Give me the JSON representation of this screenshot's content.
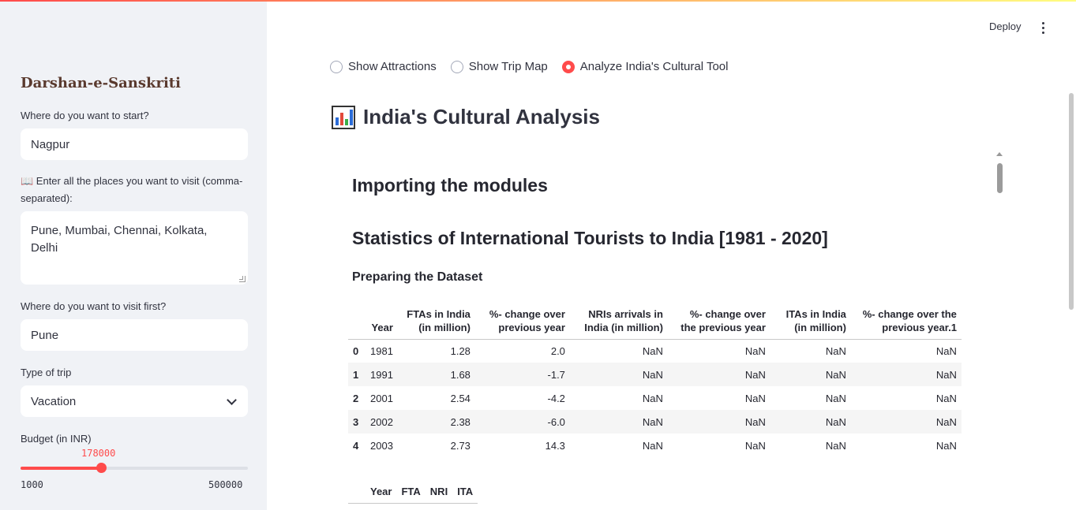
{
  "sidebar": {
    "title": "Darshan-e-Sanskriti",
    "start_label": "Where do you want to start?",
    "start_value": "Nagpur",
    "places_label": "📖 Enter all the places you want to visit (comma-separated):",
    "places_value": "Pune, Mumbai, Chennai, Kolkata, Delhi",
    "first_label": "Where do you want to visit first?",
    "first_value": "Pune",
    "trip_label": "Type of trip",
    "trip_value": "Vacation",
    "budget_label": "Budget (in INR)",
    "budget_value": "178000",
    "budget_min": "1000",
    "budget_max": "500000",
    "budget_fraction": 0.354
  },
  "header": {
    "deploy_label": "Deploy"
  },
  "radio": {
    "options": [
      "Show Attractions",
      "Show Trip Map",
      "Analyze India's Cultural Tool"
    ],
    "selected_index": 2
  },
  "main": {
    "title": "India's Cultural Analysis",
    "icon": "bar-chart-icon"
  },
  "content": {
    "h_modules": "Importing the modules",
    "h_stats": "Statistics of International Tourists to India [1981 - 2020]",
    "h_dataset": "Preparing the Dataset",
    "table1": {
      "columns": [
        "Year",
        "FTAs in India (in million)",
        "%- change over previous year",
        "NRIs arrivals in India (in million)",
        "%- change over the previous year",
        "ITAs in India (in million)",
        "%- change over the previous year.1"
      ],
      "rows": [
        [
          "0",
          "1981",
          "1.28",
          "2.0",
          "NaN",
          "NaN",
          "NaN",
          "NaN"
        ],
        [
          "1",
          "1991",
          "1.68",
          "-1.7",
          "NaN",
          "NaN",
          "NaN",
          "NaN"
        ],
        [
          "2",
          "2001",
          "2.54",
          "-4.2",
          "NaN",
          "NaN",
          "NaN",
          "NaN"
        ],
        [
          "3",
          "2002",
          "2.38",
          "-6.0",
          "NaN",
          "NaN",
          "NaN",
          "NaN"
        ],
        [
          "4",
          "2003",
          "2.73",
          "14.3",
          "NaN",
          "NaN",
          "NaN",
          "NaN"
        ]
      ]
    },
    "table2": {
      "columns": [
        "Year",
        "FTA",
        "NRI",
        "ITA"
      ]
    }
  },
  "colors": {
    "accent": "#ff4b4b",
    "sidebar_bg": "#f0f2f6",
    "title_brown": "#5a3a2e"
  }
}
